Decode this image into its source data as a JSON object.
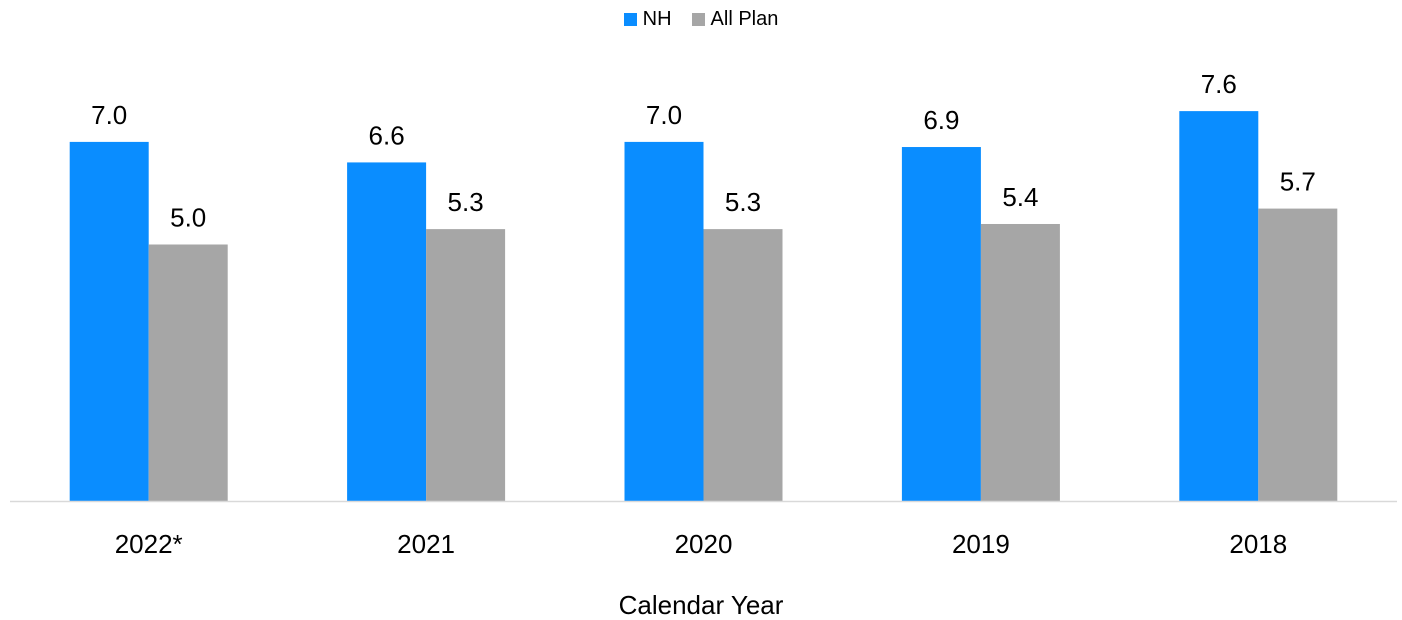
{
  "chart_data": {
    "type": "bar",
    "categories": [
      "2022*",
      "2021",
      "2020",
      "2019",
      "2018"
    ],
    "series": [
      {
        "name": "NH",
        "values": [
          7.0,
          6.6,
          7.0,
          6.9,
          7.6
        ],
        "color": "#0A8DFF"
      },
      {
        "name": "All Plan",
        "values": [
          5.0,
          5.3,
          5.3,
          5.4,
          5.7
        ],
        "color": "#A6A6A6"
      }
    ],
    "data_labels": [
      [
        "7.0",
        "6.6",
        "7.0",
        "6.9",
        "7.6"
      ],
      [
        "5.0",
        "5.3",
        "5.3",
        "5.4",
        "5.7"
      ]
    ],
    "xlabel": "Calendar Year",
    "ylabel": "",
    "ylim": [
      0,
      10
    ],
    "grid": false,
    "legend_position": "top-center",
    "axis_color": "#D9D9D9"
  }
}
